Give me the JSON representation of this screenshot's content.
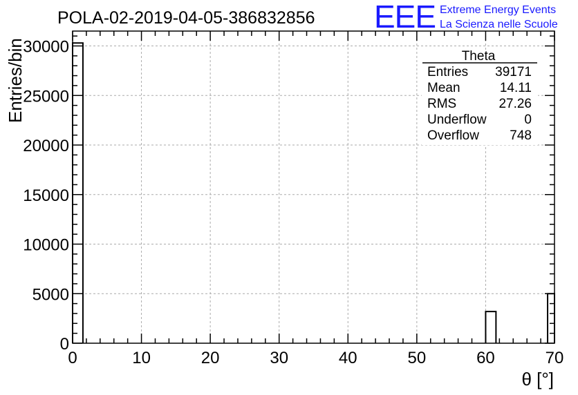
{
  "title": "POLA-02-2019-04-05-386832856",
  "logo": {
    "mark": "EEE",
    "line1": "Extreme Energy Events",
    "line2": "La Scienza nelle Scuole",
    "color": "#1a1aff"
  },
  "stats_box": {
    "name": "Theta",
    "rows": [
      {
        "label": "Entries",
        "value": "39171"
      },
      {
        "label": "Mean",
        "value": "14.11"
      },
      {
        "label": "RMS",
        "value": "27.26"
      },
      {
        "label": "Underflow",
        "value": "0"
      },
      {
        "label": "Overflow",
        "value": "748"
      }
    ]
  },
  "chart_data": {
    "type": "bar",
    "title": "POLA-02-2019-04-05-386832856",
    "xlabel": "θ [°]",
    "ylabel": "Entries/bin",
    "xlim": [
      0,
      70
    ],
    "ylim": [
      0,
      31500
    ],
    "grid": true,
    "x_ticks": [
      0,
      10,
      20,
      30,
      40,
      50,
      60,
      70
    ],
    "y_ticks": [
      0,
      5000,
      10000,
      15000,
      20000,
      25000,
      30000
    ],
    "x_tick_labels": [
      "0",
      "10",
      "20",
      "30",
      "40",
      "50",
      "60",
      "70"
    ],
    "y_tick_labels": [
      "0",
      "5000",
      "10000",
      "15000",
      "20000",
      "25000",
      "30000"
    ],
    "bin_width": 1.5,
    "bins": [
      {
        "x0": 0,
        "x1": 1.5,
        "value": 30300
      },
      {
        "x0": 60,
        "x1": 61.5,
        "value": 3200
      },
      {
        "x0": 69,
        "x1": 70,
        "value": 5000
      }
    ],
    "line_color": "#000000"
  }
}
